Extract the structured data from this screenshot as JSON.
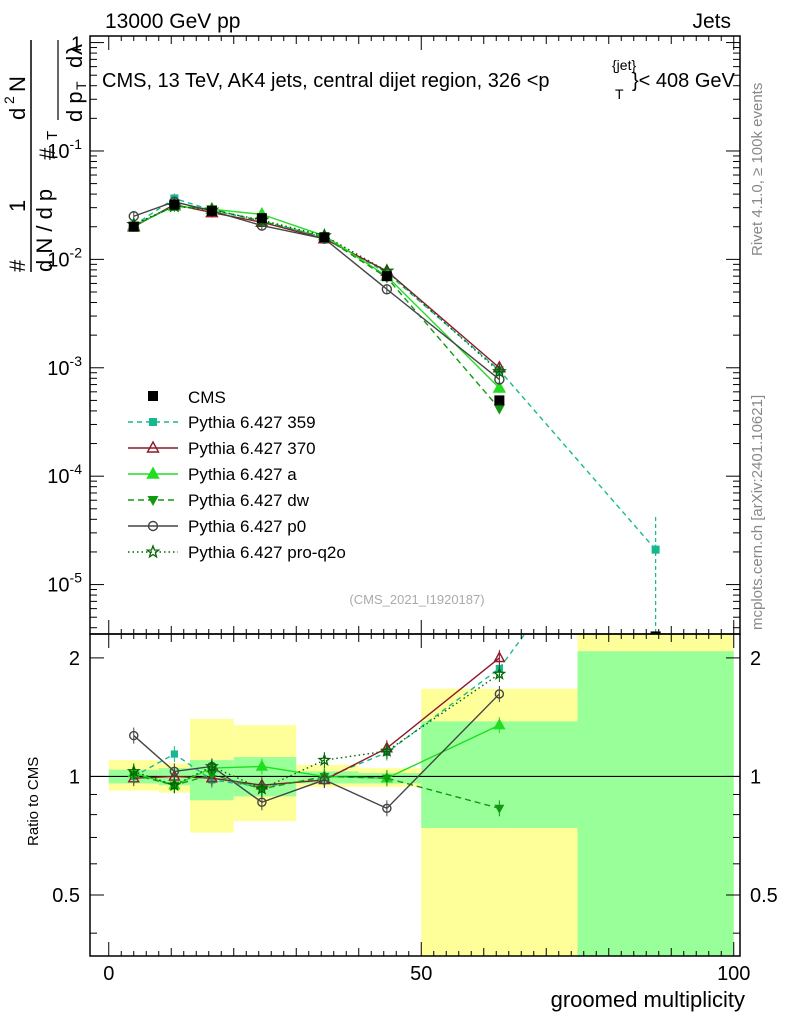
{
  "header": {
    "left": "13000 GeV pp",
    "right": "Jets"
  },
  "chart_data": {
    "type": "line",
    "title": "CMS, 13 TeV, AK4 jets, central dijet region, 326 <p",
    "title_sub": "T",
    "title_sup": "{jet}",
    "title_end": "}< 408 GeV",
    "xlabel": "groomed multiplicity",
    "ylabel_parts": [
      "1",
      "d N / d p",
      "T",
      "#",
      "d",
      "2",
      "N",
      "d p",
      "T",
      "d",
      "λ",
      "#"
    ],
    "ratio_ylabel": "Ratio to CMS",
    "side_label_top": "Rivet 4.1.0, ≥ 100k events",
    "side_label_bottom": "mcplots.cern.ch [arXiv:2401.10621]",
    "analysis_tag": "(CMS_2021_I1920187)",
    "xlim": [
      -3,
      101
    ],
    "ylim": [
      3.5e-06,
      1.15
    ],
    "ratio_ylim": [
      0.35,
      2.3
    ],
    "x_ticks": [
      0,
      50,
      100
    ],
    "y_ticks": [
      {
        "base": "10",
        "exp": "-5",
        "value": 1e-05
      },
      {
        "base": "10",
        "exp": "-4",
        "value": 0.0001
      },
      {
        "base": "10",
        "exp": "-3",
        "value": 0.001
      },
      {
        "base": "10",
        "exp": "-2",
        "value": 0.01
      },
      {
        "base": "10",
        "exp": "-1",
        "value": 0.1
      },
      {
        "base": "1",
        "exp": "",
        "value": 1
      }
    ],
    "ratio_ticks": [
      {
        "label": "0.5",
        "value": 0.5
      },
      {
        "label": "1",
        "value": 1
      },
      {
        "label": "2",
        "value": 2
      }
    ],
    "data": {
      "name": "CMS",
      "x": [
        4,
        10.5,
        16.5,
        24.5,
        34.5,
        44.5,
        62.5,
        87.5
      ],
      "xlow": [
        0,
        9,
        13,
        20,
        30,
        40,
        50,
        75
      ],
      "xhigh": [
        8,
        12,
        20,
        30,
        40,
        50,
        75,
        100
      ],
      "values": [
        0.02,
        0.032,
        0.028,
        0.024,
        0.016,
        0.007,
        0.0005,
        3.2e-06
      ],
      "bands": [
        {
          "xlow": 0,
          "xhigh": 8,
          "stat": [
            0.96,
            1.04
          ],
          "total": [
            0.92,
            1.1
          ]
        },
        {
          "xlow": 8,
          "xhigh": 13,
          "stat": [
            0.95,
            1.05
          ],
          "total": [
            0.91,
            1.08
          ]
        },
        {
          "xlow": 13,
          "xhigh": 20,
          "stat": [
            0.87,
            1.1
          ],
          "total": [
            0.72,
            1.4
          ]
        },
        {
          "xlow": 20,
          "xhigh": 30,
          "stat": [
            0.89,
            1.12
          ],
          "total": [
            0.77,
            1.35
          ]
        },
        {
          "xlow": 30,
          "xhigh": 40,
          "stat": [
            0.96,
            1.03
          ],
          "total": [
            0.94,
            1.07
          ]
        },
        {
          "xlow": 40,
          "xhigh": 50,
          "stat": [
            0.96,
            1.02
          ],
          "total": [
            0.94,
            1.05
          ]
        },
        {
          "xlow": 50,
          "xhigh": 75,
          "stat": [
            0.74,
            1.38
          ],
          "total": [
            0.35,
            1.67
          ]
        },
        {
          "xlow": 75,
          "xhigh": 100,
          "stat": [
            0.35,
            2.08
          ],
          "total": [
            0.35,
            2.3
          ]
        }
      ]
    },
    "series": [
      {
        "name": "Pythia 6.427 359",
        "color": "#17b890",
        "dash": "5,4",
        "marker": "square",
        "x": [
          4,
          10.5,
          16.5,
          24.5,
          34.5,
          44.5,
          62.5,
          87.5
        ],
        "values": [
          0.0205,
          0.0365,
          0.0285,
          0.0225,
          0.016,
          0.0075,
          0.00095,
          2.1e-05
        ],
        "ratio": [
          1.0,
          1.14,
          0.98,
          0.94,
          0.99,
          1.15,
          1.88,
          6.5
        ]
      },
      {
        "name": "Pythia 6.427 370",
        "color": "#8b1a2b",
        "dash": "",
        "marker": "triangle-open",
        "x": [
          4,
          10.5,
          16.5,
          24.5,
          34.5,
          44.5,
          62.5
        ],
        "values": [
          0.02,
          0.032,
          0.027,
          0.022,
          0.0155,
          0.0078,
          0.001
        ],
        "ratio": [
          0.99,
          1.0,
          0.99,
          0.95,
          0.98,
          1.18,
          2.0
        ]
      },
      {
        "name": "Pythia 6.427 a",
        "color": "#22dd22",
        "dash": "",
        "marker": "triangle",
        "x": [
          4,
          10.5,
          16.5,
          24.5,
          34.5,
          44.5,
          62.5
        ],
        "values": [
          0.0205,
          0.031,
          0.029,
          0.026,
          0.0165,
          0.007,
          0.00065
        ],
        "ratio": [
          1.02,
          0.95,
          1.05,
          1.06,
          1.0,
          0.99,
          1.35
        ]
      },
      {
        "name": "Pythia 6.427 dw",
        "color": "#119911",
        "dash": "6,4",
        "marker": "triangle-down",
        "x": [
          4,
          10.5,
          16.5,
          24.5,
          34.5,
          44.5,
          62.5
        ],
        "values": [
          0.0205,
          0.031,
          0.029,
          0.0225,
          0.016,
          0.0068,
          0.00042
        ],
        "ratio": [
          1.01,
          0.95,
          1.01,
          0.93,
          1.0,
          0.99,
          0.83
        ]
      },
      {
        "name": "Pythia 6.427 p0",
        "color": "#444444",
        "dash": "",
        "marker": "circle-open",
        "x": [
          4,
          10.5,
          16.5,
          24.5,
          34.5,
          44.5,
          62.5
        ],
        "values": [
          0.025,
          0.034,
          0.028,
          0.0205,
          0.0155,
          0.0053,
          0.00078
        ],
        "ratio": [
          1.27,
          1.03,
          1.06,
          0.86,
          0.98,
          0.83,
          1.62
        ]
      },
      {
        "name": "Pythia 6.427 pro-q2o",
        "color": "#006600",
        "dash": "1.5,3",
        "marker": "star",
        "x": [
          4,
          10.5,
          16.5,
          24.5,
          34.5,
          44.5,
          62.5
        ],
        "values": [
          0.021,
          0.031,
          0.0285,
          0.023,
          0.0165,
          0.0078,
          0.00092
        ],
        "ratio": [
          1.03,
          0.95,
          1.06,
          0.93,
          1.1,
          1.16,
          1.82
        ]
      }
    ],
    "legend_data_label": "CMS"
  }
}
